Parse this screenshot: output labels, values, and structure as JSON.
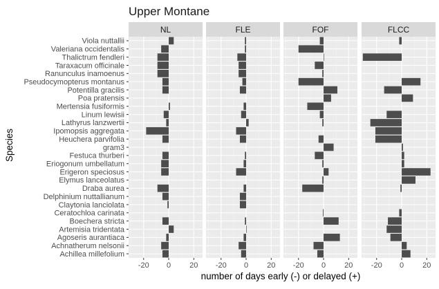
{
  "chart_data": {
    "type": "bar",
    "orientation": "horizontal",
    "title": "Upper Montane",
    "xlabel": "number of days early (-) or delayed (+)",
    "ylabel": "Species",
    "xlim": [
      -32,
      27
    ],
    "xticks": [
      -20,
      0,
      20
    ],
    "tick_labels": [
      "-20",
      "0",
      "20"
    ],
    "grid": true,
    "categories": [
      "Viola nuttallii",
      "Valeriana occidentalis",
      "Thalictrum fendleri",
      "Taraxacum officinale",
      "Ranunculus inamoenus",
      "Pseudocymopterus montanus",
      "Potentilla gracilis",
      "Poa pratensis",
      "Mertensia fusiformis",
      "Linum lewisii",
      "Lathyrus lanzwertii",
      "Ipomopsis aggregata",
      "Heuchera parvifolia",
      "gram3",
      "Festuca thurberi",
      "Eriogonum umbellatum",
      "Erigeron speciosus",
      "Elymus lanceolatus",
      "Draba aurea",
      "Delphinium nuttallianum",
      "Claytonia lanciolata",
      "Ceratochloa carinata",
      "Boechera stricta",
      "Artemisia tridentata",
      "Agoseris aurantiaca",
      "Achnatherum nelsonii",
      "Achillea millefolium"
    ],
    "panels": [
      {
        "name": "NL",
        "values": [
          4,
          -6,
          -9,
          -9,
          -9,
          -5,
          -5,
          null,
          1,
          -4,
          -2,
          -18,
          -5,
          null,
          -5,
          -6,
          -6,
          null,
          -9,
          -5,
          -1,
          null,
          -5,
          4,
          -2,
          -6,
          -5
        ]
      },
      {
        "name": "FLE",
        "values": [
          -1,
          -1,
          -7,
          -6,
          -6,
          -3,
          -5,
          null,
          -2,
          -4,
          2,
          -8,
          -5,
          null,
          -1,
          -2,
          -8,
          null,
          -2,
          -5,
          -5,
          null,
          -1,
          0,
          -2,
          -6,
          -4
        ]
      },
      {
        "name": "FOF",
        "values": [
          -3,
          -20,
          0,
          -7,
          -1,
          -20,
          11,
          6,
          -13,
          -3,
          -1,
          null,
          -4,
          8,
          -7,
          -1,
          4,
          -1,
          -17,
          null,
          null,
          -0.5,
          12,
          null,
          13,
          -8,
          -5
        ]
      },
      {
        "name": "FLCC",
        "values": [
          -2,
          null,
          -31,
          null,
          null,
          15,
          -14,
          9,
          null,
          -12,
          -25,
          -21,
          -21,
          1,
          2,
          2,
          23,
          11,
          -1,
          null,
          null,
          -2,
          -11,
          -12,
          -9,
          4,
          7
        ]
      }
    ]
  }
}
